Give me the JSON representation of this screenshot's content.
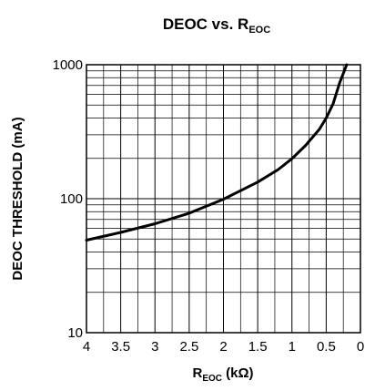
{
  "chart_data": {
    "type": "line",
    "title_main": "DEOC vs. R",
    "title_sub": "EOC",
    "xlabel_main": "R",
    "xlabel_sub": "EOC",
    "xlabel_unit": " (kΩ)",
    "ylabel": "DEOC THRESHOLD (mA)",
    "x_scale": "linear",
    "x_reversed": true,
    "xlim": [
      4,
      0
    ],
    "x_ticks": [
      4,
      3.5,
      3,
      2.5,
      2,
      1.5,
      1,
      0.5,
      0
    ],
    "x_tick_labels": [
      "4",
      "3.5",
      "3",
      "2.5",
      "2",
      "1.5",
      "1",
      "0.5",
      "0"
    ],
    "y_scale": "log",
    "ylim": [
      10,
      1000
    ],
    "y_tick_labels": [
      "1000",
      "100",
      "10"
    ],
    "y_ticks": [
      1000,
      100,
      10
    ],
    "grid": true,
    "series": [
      {
        "color": "#000000",
        "x": [
          4.0,
          3.5,
          3.0,
          2.5,
          2.0,
          1.5,
          1.2,
          1.0,
          0.8,
          0.6,
          0.5,
          0.4,
          0.3,
          0.2
        ],
        "y": [
          49,
          56,
          65,
          78,
          99,
          133,
          165,
          199,
          250,
          330,
          400,
          510,
          740,
          1000
        ]
      }
    ]
  }
}
